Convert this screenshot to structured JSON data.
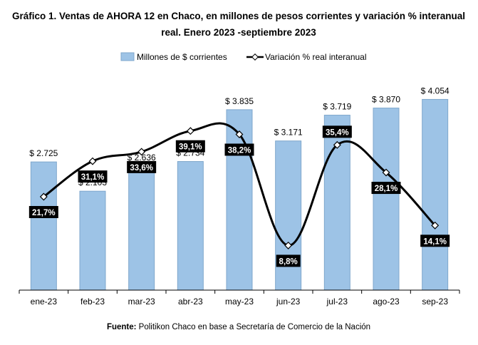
{
  "title": {
    "line1": "Gráfico 1. Ventas de AHORA 12 en Chaco, en millones de pesos corrientes y variación % interanual",
    "line2": "real. Enero 2023 -septiembre 2023"
  },
  "legend": {
    "bars_label": "Millones de $ corrientes",
    "line_label": "Variación % real interanual",
    "placement": "top-center"
  },
  "source": {
    "prefix": "Fuente:",
    "text": " Politikon Chaco en base a Secretaría de Comercio de la Nación"
  },
  "colors": {
    "bar_fill": "#9DC3E6",
    "bar_stroke": "#7FA7CC",
    "line": "#000000",
    "marker_fill": "#ffffff",
    "label_box": "#000000",
    "label_text": "#ffffff",
    "axis": "#000000"
  },
  "chart_data": {
    "type": "bar",
    "combo": "bar + line (secondary axis)",
    "title": "Gráfico 1. Ventas de AHORA 12 en Chaco, en millones de pesos corrientes y variación % interanual real. Enero 2023 -septiembre 2023",
    "categories": [
      "ene-23",
      "feb-23",
      "mar-23",
      "abr-23",
      "may-23",
      "jun-23",
      "jul-23",
      "ago-23",
      "sep-23"
    ],
    "series": [
      {
        "name": "Millones de $ corrientes",
        "type": "bar",
        "values": [
          2725,
          2103,
          2636,
          2734,
          3835,
          3171,
          3719,
          3870,
          4054
        ],
        "labels": [
          "$ 2.725",
          "$ 2.103",
          "$ 2.636",
          "$ 2.734",
          "$ 3.835",
          "$ 3.171",
          "$ 3.719",
          "$ 3.870",
          "$ 4.054"
        ]
      },
      {
        "name": "Variación % real interanual",
        "type": "line",
        "smooth": true,
        "values": [
          21.7,
          31.1,
          33.6,
          39.1,
          38.2,
          8.8,
          35.4,
          28.1,
          14.1
        ],
        "labels": [
          "21,7%",
          "31,1%",
          "33,6%",
          "39,1%",
          "38,2%",
          "8,8%",
          "35,4%",
          "28,1%",
          "14,1%"
        ]
      }
    ],
    "ylim": [
      0,
      4500
    ],
    "y2lim": [
      -3,
      53
    ],
    "xlabel": "",
    "ylabel": "",
    "grid": false,
    "legend": "top-center"
  }
}
